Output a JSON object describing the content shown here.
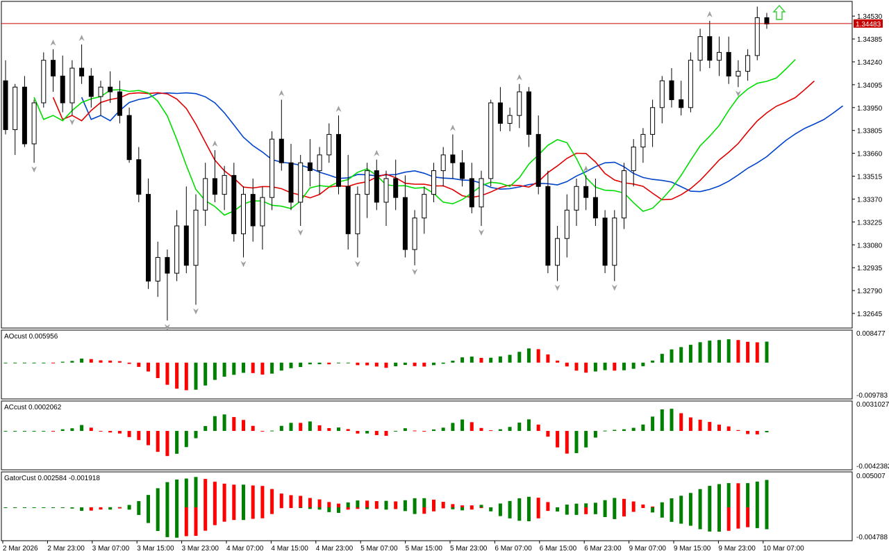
{
  "colors": {
    "background": "#ffffff",
    "frame": "#000000",
    "bull_body": "#ffffff",
    "bear_body": "#000000",
    "candle_outline": "#000000",
    "alligator_jaw": "#0044cc",
    "alligator_teeth": "#e00000",
    "alligator_lips": "#00dd00",
    "hist_up": "#008000",
    "hist_down": "#ff0000",
    "fractal": "#a0a0a0",
    "bid_line": "#c80000",
    "bid_tag": "#c80000",
    "signal_arrow": "#32cd32"
  },
  "main_chart": {
    "price_axis": [
      "1.34530",
      "1.34385",
      "1.34240",
      "1.34095",
      "1.33950",
      "1.33805",
      "1.33660",
      "1.33515",
      "1.33370",
      "1.33225",
      "1.33080",
      "1.32935",
      "1.32790",
      "1.32645"
    ],
    "price_min": 1.3257,
    "price_max": 1.3461,
    "current_price": 1.34483,
    "current_price_label": "1.34483",
    "signal_arrow_icon": "up-arrow-icon"
  },
  "time_axis": [
    "2 Mar 2026",
    "2 Mar 23:00",
    "3 Mar 07:00",
    "3 Mar 15:00",
    "3 Mar 23:00",
    "4 Mar 07:00",
    "4 Mar 15:00",
    "4 Mar 23:00",
    "5 Mar 07:00",
    "5 Mar 15:00",
    "5 Mar 23:00",
    "6 Mar 07:00",
    "6 Mar 15:00",
    "6 Mar 23:00",
    "9 Mar 07:00",
    "9 Mar 15:00",
    "9 Mar 23:00",
    "10 Mar 07:00"
  ],
  "panes": {
    "ao": {
      "label": "AOcust 0.005956",
      "max_label": "0.008477",
      "min_label": "-0.009783",
      "max": 0.008477,
      "min": -0.009783
    },
    "ac": {
      "label": "ACcust 0.0002062",
      "max_label": "0.0031027",
      "min_label": "-0.0042382",
      "max": 0.0031027,
      "min": -0.0042382
    },
    "gator": {
      "label": "GatorCust 0.002584 -0.001918",
      "max_label": "0.005007",
      "min_label": "-0.004788",
      "max": 0.005007,
      "min": -0.004788
    }
  },
  "chart_data": {
    "type": "candlestick",
    "symbol_timeframe": "",
    "series": [
      {
        "name": "",
        "type": "ohlc",
        "values": [
          [
            1.3412,
            1.3425,
            1.3378,
            1.3381
          ],
          [
            1.3381,
            1.341,
            1.3365,
            1.3408
          ],
          [
            1.3408,
            1.3415,
            1.337,
            1.3372
          ],
          [
            1.3372,
            1.34,
            1.336,
            1.3398
          ],
          [
            1.3398,
            1.343,
            1.3395,
            1.3425
          ],
          [
            1.3425,
            1.3432,
            1.3405,
            1.3415
          ],
          [
            1.3415,
            1.3428,
            1.3392,
            1.3398
          ],
          [
            1.3398,
            1.3425,
            1.339,
            1.342
          ],
          [
            1.342,
            1.3435,
            1.341,
            1.3415
          ],
          [
            1.3415,
            1.342,
            1.3395,
            1.3402
          ],
          [
            1.3402,
            1.3412,
            1.339,
            1.3408
          ],
          [
            1.3408,
            1.3418,
            1.3398,
            1.3405
          ],
          [
            1.3405,
            1.3412,
            1.3385,
            1.339
          ],
          [
            1.339,
            1.3395,
            1.336,
            1.3362
          ],
          [
            1.3362,
            1.337,
            1.3335,
            1.334
          ],
          [
            1.334,
            1.335,
            1.328,
            1.3285
          ],
          [
            1.3285,
            1.331,
            1.3275,
            1.33
          ],
          [
            1.33,
            1.3305,
            1.326,
            1.329
          ],
          [
            1.329,
            1.333,
            1.3285,
            1.332
          ],
          [
            1.332,
            1.3345,
            1.329,
            1.3295
          ],
          [
            1.3295,
            1.334,
            1.327,
            1.333
          ],
          [
            1.333,
            1.336,
            1.332,
            1.335
          ],
          [
            1.335,
            1.3368,
            1.3335,
            1.334
          ],
          [
            1.334,
            1.3358,
            1.333,
            1.3352
          ],
          [
            1.3352,
            1.336,
            1.331,
            1.3315
          ],
          [
            1.3315,
            1.3345,
            1.33,
            1.334
          ],
          [
            1.334,
            1.335,
            1.331,
            1.332
          ],
          [
            1.332,
            1.3345,
            1.3305,
            1.3338
          ],
          [
            1.3338,
            1.338,
            1.333,
            1.3375
          ],
          [
            1.3375,
            1.34,
            1.3355,
            1.336
          ],
          [
            1.336,
            1.3372,
            1.333,
            1.3335
          ],
          [
            1.3335,
            1.3365,
            1.332,
            1.336
          ],
          [
            1.336,
            1.3375,
            1.3345,
            1.3355
          ],
          [
            1.3355,
            1.337,
            1.334,
            1.3365
          ],
          [
            1.3365,
            1.3385,
            1.336,
            1.3378
          ],
          [
            1.3378,
            1.339,
            1.334,
            1.3345
          ],
          [
            1.3345,
            1.3365,
            1.3305,
            1.3315
          ],
          [
            1.3315,
            1.3345,
            1.33,
            1.334
          ],
          [
            1.334,
            1.336,
            1.3325,
            1.3355
          ],
          [
            1.3355,
            1.3362,
            1.333,
            1.3335
          ],
          [
            1.3335,
            1.3355,
            1.332,
            1.335
          ],
          [
            1.335,
            1.3362,
            1.333,
            1.3338
          ],
          [
            1.3338,
            1.3352,
            1.33,
            1.3305
          ],
          [
            1.3305,
            1.333,
            1.3295,
            1.3325
          ],
          [
            1.3325,
            1.3345,
            1.3315,
            1.334
          ],
          [
            1.334,
            1.336,
            1.3335,
            1.3355
          ],
          [
            1.3355,
            1.337,
            1.3345,
            1.3365
          ],
          [
            1.3365,
            1.3378,
            1.335,
            1.336
          ],
          [
            1.336,
            1.3368,
            1.3345,
            1.335
          ],
          [
            1.335,
            1.336,
            1.3328,
            1.3332
          ],
          [
            1.3332,
            1.3355,
            1.332,
            1.335
          ],
          [
            1.335,
            1.34,
            1.3345,
            1.3398
          ],
          [
            1.3398,
            1.3408,
            1.338,
            1.3385
          ],
          [
            1.3385,
            1.3395,
            1.338,
            1.339
          ],
          [
            1.339,
            1.341,
            1.3382,
            1.3405
          ],
          [
            1.3405,
            1.3408,
            1.337,
            1.3378
          ],
          [
            1.3378,
            1.339,
            1.334,
            1.3345
          ],
          [
            1.3345,
            1.3355,
            1.329,
            1.3295
          ],
          [
            1.3295,
            1.332,
            1.3285,
            1.3312
          ],
          [
            1.3312,
            1.334,
            1.33,
            1.333
          ],
          [
            1.333,
            1.335,
            1.332,
            1.3345
          ],
          [
            1.3345,
            1.3352,
            1.333,
            1.3338
          ],
          [
            1.3338,
            1.335,
            1.332,
            1.3325
          ],
          [
            1.3325,
            1.333,
            1.329,
            1.3295
          ],
          [
            1.3295,
            1.333,
            1.3285,
            1.3325
          ],
          [
            1.3325,
            1.336,
            1.3318,
            1.3355
          ],
          [
            1.3355,
            1.3375,
            1.3345,
            1.337
          ],
          [
            1.337,
            1.3382,
            1.336,
            1.3378
          ],
          [
            1.3378,
            1.34,
            1.337,
            1.3395
          ],
          [
            1.3395,
            1.3415,
            1.3385,
            1.3412
          ],
          [
            1.3412,
            1.342,
            1.3395,
            1.34
          ],
          [
            1.34,
            1.3412,
            1.339,
            1.3395
          ],
          [
            1.3395,
            1.343,
            1.3392,
            1.3425
          ],
          [
            1.3425,
            1.3445,
            1.3418,
            1.344
          ],
          [
            1.344,
            1.345,
            1.342,
            1.3425
          ],
          [
            1.3425,
            1.344,
            1.3415,
            1.343
          ],
          [
            1.343,
            1.344,
            1.341,
            1.3415
          ],
          [
            1.3415,
            1.3425,
            1.3408,
            1.3418
          ],
          [
            1.3418,
            1.3432,
            1.3412,
            1.3428
          ],
          [
            1.3428,
            1.3459,
            1.3425,
            1.3452
          ],
          [
            1.3452,
            1.3455,
            1.3445,
            1.3448
          ]
        ]
      }
    ],
    "ylim": [
      1.3257,
      1.3461
    ],
    "grid": false
  }
}
